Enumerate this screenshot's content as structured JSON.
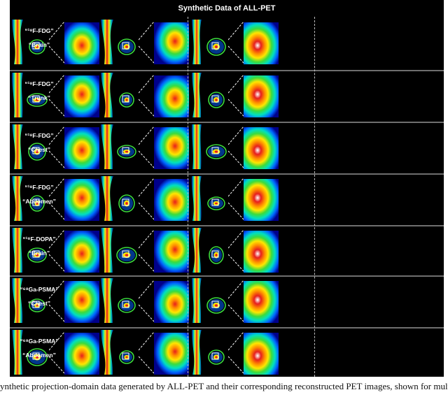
{
  "figure": {
    "title": "Synthetic Data of ALL-PET",
    "rows": [
      {
        "tracer": "“¹⁸F-FDG”",
        "region": "“Brain”"
      },
      {
        "tracer": "“¹⁸F-FDG”",
        "region": "“Trunk”"
      },
      {
        "tracer": "“¹⁸F-FDG”",
        "region": "“Chest”"
      },
      {
        "tracer": "“¹⁸F-FDG”",
        "region": "“Abdomen”"
      },
      {
        "tracer": "“¹⁸F-DOPA”",
        "region": "“Brain”"
      },
      {
        "tracer": "“⁶⁸Ga-PSMA”",
        "region": "“Chest”"
      },
      {
        "tracer": "“⁶⁸Ga-PSMA”",
        "region": "“Abdomen”"
      }
    ],
    "columns_per_row": 3,
    "panel_kinds": [
      "sinogram",
      "reconstruction",
      "zoom-inset"
    ],
    "colormap": [
      "#00008b",
      "#0064ff",
      "#00e0c0",
      "#3cdc3c",
      "#ffe600",
      "#ff8c00",
      "#e61e1e",
      "#ffffff"
    ]
  },
  "caption": "ynthetic projection-domain data generated by ALL-PET and their corresponding reconstructed PET images, shown for multiple radiotrac"
}
